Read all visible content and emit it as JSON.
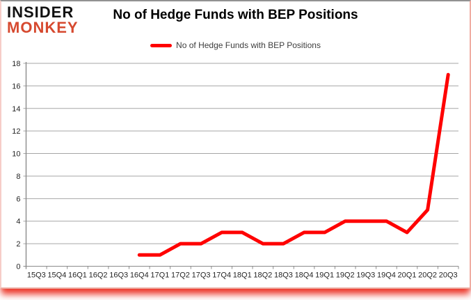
{
  "logo": {
    "line1": "INSIDER",
    "line2": "MONKEY"
  },
  "header": {
    "title": "No of Hedge Funds with BEP Positions"
  },
  "legend": {
    "label": "No of Hedge Funds with BEP Positions",
    "line_color": "#ff0000"
  },
  "colors": {
    "brand_red": "#d6492f",
    "series_red": "#ff0000",
    "gridline": "#a6a6a6",
    "axis": "#8a8a8a",
    "tick_text": "#262626"
  },
  "chart_data": {
    "type": "line",
    "title": "No of Hedge Funds with BEP Positions",
    "categories": [
      "15Q3",
      "15Q4",
      "16Q1",
      "16Q2",
      "16Q3",
      "16Q4",
      "17Q1",
      "17Q2",
      "17Q3",
      "17Q4",
      "18Q1",
      "18Q2",
      "18Q3",
      "18Q4",
      "19Q1",
      "19Q2",
      "19Q3",
      "19Q4",
      "20Q1",
      "20Q2",
      "20Q3"
    ],
    "series": [
      {
        "name": "No of Hedge Funds with BEP Positions",
        "color": "#ff0000",
        "values": [
          null,
          null,
          null,
          null,
          null,
          1,
          1,
          2,
          2,
          3,
          3,
          2,
          2,
          3,
          3,
          4,
          4,
          4,
          3,
          5,
          17
        ]
      }
    ],
    "xlabel": "",
    "ylabel": "",
    "ylim": [
      0,
      18
    ],
    "ytick_step": 2,
    "grid": true,
    "legend_position": "top"
  }
}
